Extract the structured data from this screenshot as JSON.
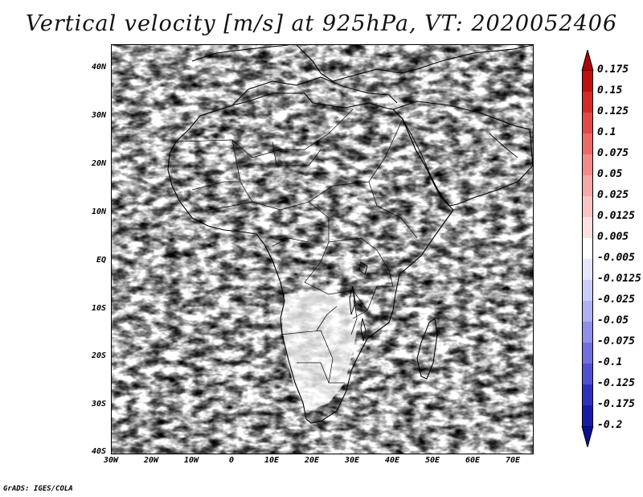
{
  "title": "Vertical velocity [m/s] at 925hPa, VT: 2020052406",
  "footer": "GrADS: IGES/COLA",
  "y_ticks": [
    "40N",
    "30N",
    "20N",
    "10N",
    "EQ",
    "10S",
    "20S",
    "30S",
    "40S"
  ],
  "x_ticks": [
    "30W",
    "20W",
    "10W",
    "0",
    "10E",
    "20E",
    "30E",
    "40E",
    "50E",
    "60E",
    "70E"
  ],
  "map_extent": {
    "lon_min": -30,
    "lon_max": 75,
    "lat_min": -40,
    "lat_max": 45
  },
  "colorbar": {
    "labels": [
      "0.175",
      "0.15",
      "0.125",
      "0.1",
      "0.075",
      "0.05",
      "0.025",
      "0.0125",
      "0.005",
      "-0.005",
      "-0.0125",
      "-0.025",
      "-0.05",
      "-0.075",
      "-0.1",
      "-0.125",
      "-0.175",
      "-0.2"
    ],
    "colors": [
      "#c01010",
      "#d62a2a",
      "#e24a4a",
      "#ec6a6a",
      "#f48a8a",
      "#f8a8a8",
      "#fbc4c4",
      "#fde0e0",
      "#ffffff",
      "#e6e6ff",
      "#ccccfa",
      "#b0b0f2",
      "#9090ea",
      "#7070e0",
      "#5050d2",
      "#3030c0",
      "#1a1aa8"
    ],
    "top_arrow_color": "#a80808",
    "bottom_arrow_color": "#0e0e90"
  },
  "colors": {
    "positive": "#e05050",
    "negative": "#5a5ae0",
    "coast": "#000000"
  }
}
